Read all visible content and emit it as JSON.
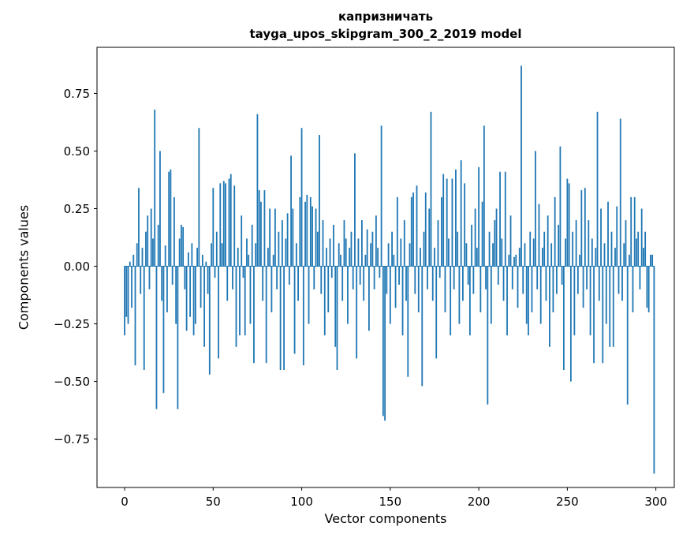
{
  "chart_data": {
    "type": "bar",
    "title": "капризничать",
    "subtitle": "tayga_upos_skipgram_300_2_2019 model",
    "xlabel": "Vector components",
    "ylabel": "Components values",
    "bar_color": "#1f77b4",
    "axis_color": "#000000",
    "background_color": "#ffffff",
    "grid": false,
    "legend": false,
    "xlim": [
      -15.6,
      310.4
    ],
    "ylim": [
      -0.96,
      0.95
    ],
    "xticks": [
      {
        "value": 0,
        "label": "0"
      },
      {
        "value": 50,
        "label": "50"
      },
      {
        "value": 100,
        "label": "100"
      },
      {
        "value": 150,
        "label": "150"
      },
      {
        "value": 200,
        "label": "200"
      },
      {
        "value": 250,
        "label": "250"
      },
      {
        "value": 300,
        "label": "300"
      }
    ],
    "yticks": [
      {
        "value": -0.75,
        "label": "−0.75"
      },
      {
        "value": -0.5,
        "label": "−0.50"
      },
      {
        "value": -0.25,
        "label": "−0.25"
      },
      {
        "value": 0.0,
        "label": "0.00"
      },
      {
        "value": 0.25,
        "label": "0.25"
      },
      {
        "value": 0.5,
        "label": "0.50"
      },
      {
        "value": 0.75,
        "label": "0.75"
      }
    ],
    "values": [
      -0.3,
      -0.22,
      -0.25,
      0.02,
      -0.18,
      0.05,
      -0.43,
      0.1,
      0.34,
      -0.12,
      0.08,
      -0.45,
      0.15,
      0.22,
      -0.1,
      0.25,
      0.12,
      0.68,
      -0.62,
      0.18,
      0.5,
      -0.15,
      -0.55,
      0.09,
      -0.2,
      0.41,
      0.42,
      -0.08,
      0.3,
      -0.25,
      -0.62,
      0.12,
      0.18,
      0.17,
      -0.1,
      -0.28,
      0.06,
      -0.22,
      0.1,
      -0.3,
      -0.25,
      0.08,
      0.6,
      -0.18,
      0.05,
      -0.35,
      0.02,
      -0.12,
      -0.47,
      0.1,
      0.34,
      -0.05,
      0.15,
      -0.4,
      0.36,
      0.1,
      0.37,
      0.36,
      -0.15,
      0.38,
      0.4,
      -0.1,
      0.35,
      -0.35,
      0.08,
      -0.3,
      0.22,
      -0.05,
      -0.3,
      0.12,
      0.05,
      -0.25,
      0.18,
      -0.42,
      0.1,
      0.66,
      0.33,
      0.28,
      -0.15,
      0.33,
      -0.42,
      0.08,
      0.25,
      -0.2,
      0.05,
      0.25,
      -0.1,
      0.15,
      -0.45,
      0.2,
      -0.45,
      0.12,
      0.23,
      -0.08,
      0.48,
      0.25,
      -0.38,
      0.1,
      -0.15,
      0.3,
      0.6,
      -0.43,
      0.28,
      0.31,
      -0.25,
      0.3,
      0.26,
      -0.1,
      0.25,
      0.15,
      0.57,
      -0.12,
      0.2,
      -0.3,
      0.08,
      -0.2,
      0.12,
      -0.05,
      0.18,
      -0.35,
      -0.45,
      0.1,
      0.05,
      -0.15,
      0.2,
      0.12,
      -0.25,
      0.08,
      0.15,
      -0.1,
      0.49,
      -0.4,
      0.12,
      -0.08,
      0.2,
      -0.15,
      0.05,
      0.16,
      -0.28,
      0.1,
      0.15,
      -0.1,
      0.22,
      0.08,
      -0.05,
      0.61,
      -0.65,
      -0.67,
      -0.12,
      0.1,
      -0.25,
      0.15,
      0.05,
      -0.18,
      0.3,
      -0.08,
      0.12,
      -0.3,
      0.2,
      -0.15,
      -0.48,
      0.1,
      0.3,
      0.32,
      -0.12,
      0.35,
      -0.2,
      0.08,
      -0.52,
      0.15,
      0.32,
      -0.1,
      0.25,
      0.67,
      -0.15,
      0.08,
      -0.4,
      0.2,
      -0.05,
      0.3,
      0.4,
      -0.2,
      0.38,
      0.12,
      -0.3,
      0.38,
      -0.1,
      0.42,
      0.15,
      -0.25,
      0.46,
      -0.15,
      0.36,
      0.1,
      -0.08,
      -0.3,
      0.18,
      -0.12,
      0.25,
      0.08,
      0.43,
      -0.2,
      0.28,
      0.61,
      -0.1,
      -0.6,
      0.15,
      -0.25,
      0.1,
      0.2,
      0.25,
      -0.08,
      0.41,
      0.12,
      -0.15,
      0.41,
      -0.3,
      0.05,
      0.22,
      -0.1,
      0.04,
      0.05,
      -0.18,
      0.08,
      0.87,
      -0.12,
      0.1,
      -0.25,
      -0.3,
      0.15,
      -0.2,
      0.12,
      0.5,
      -0.1,
      0.27,
      -0.25,
      0.08,
      0.15,
      -0.15,
      0.22,
      -0.35,
      0.1,
      -0.2,
      0.3,
      -0.12,
      0.18,
      0.52,
      -0.08,
      -0.45,
      0.12,
      0.38,
      0.36,
      -0.5,
      0.15,
      -0.3,
      0.2,
      -0.12,
      0.05,
      0.33,
      -0.18,
      0.34,
      -0.1,
      0.2,
      -0.3,
      0.12,
      -0.42,
      0.08,
      0.67,
      -0.15,
      0.25,
      -0.42,
      0.1,
      -0.25,
      0.28,
      -0.35,
      0.15,
      -0.35,
      0.08,
      0.26,
      -0.12,
      0.64,
      -0.15,
      0.1,
      0.2,
      -0.6,
      0.05,
      0.3,
      -0.2,
      0.3,
      0.12,
      0.15,
      -0.1,
      0.25,
      0.08,
      0.15,
      -0.18,
      -0.2,
      0.05,
      0.05,
      -0.9
    ]
  }
}
